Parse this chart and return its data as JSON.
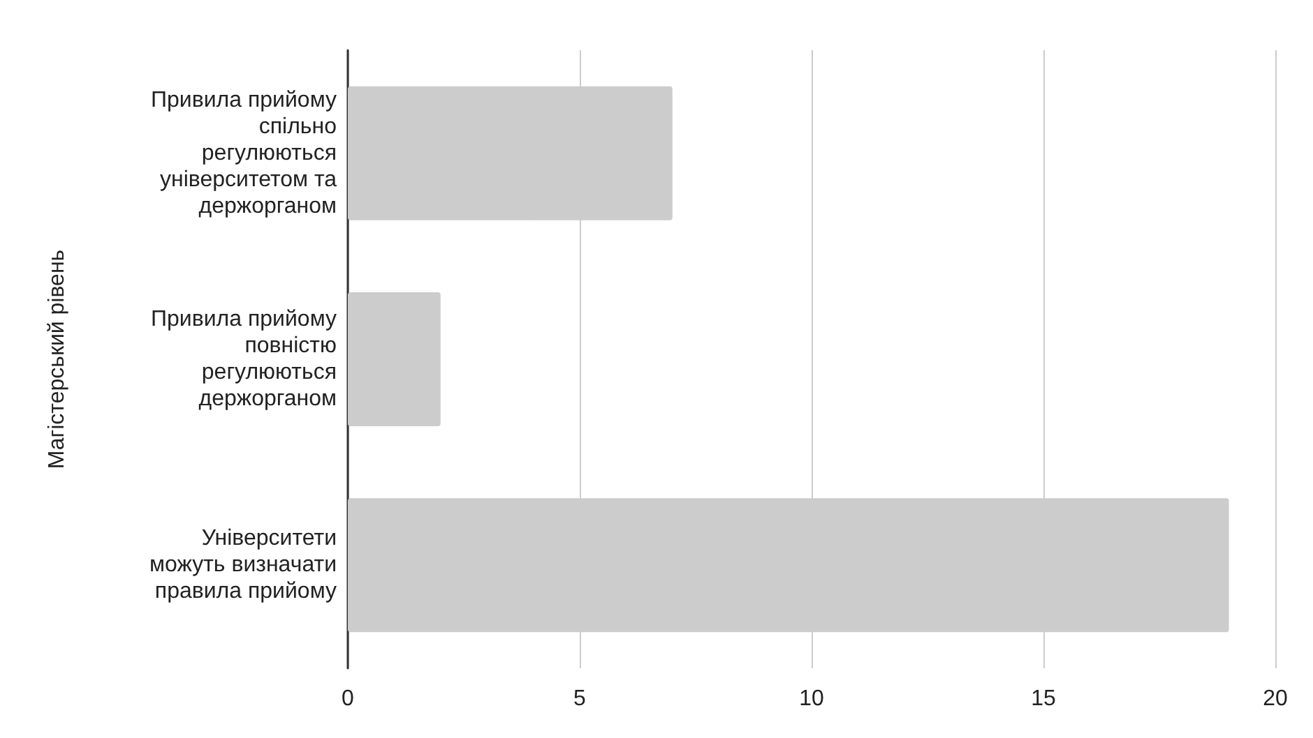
{
  "chart_data": {
    "type": "bar",
    "orientation": "horizontal",
    "ylabel": "Магістерський рівень",
    "categories": [
      "Привила прийому спільно регулюються університетом та держорганом",
      "Привила прийому повністю регулюються держорганом",
      "Університети можуть визначати правила прийому"
    ],
    "values": [
      7,
      2,
      19
    ],
    "color": "#cccccc",
    "xlim": [
      0,
      20
    ],
    "xticks": [
      0,
      5,
      10,
      15,
      20
    ],
    "grid": "x"
  }
}
